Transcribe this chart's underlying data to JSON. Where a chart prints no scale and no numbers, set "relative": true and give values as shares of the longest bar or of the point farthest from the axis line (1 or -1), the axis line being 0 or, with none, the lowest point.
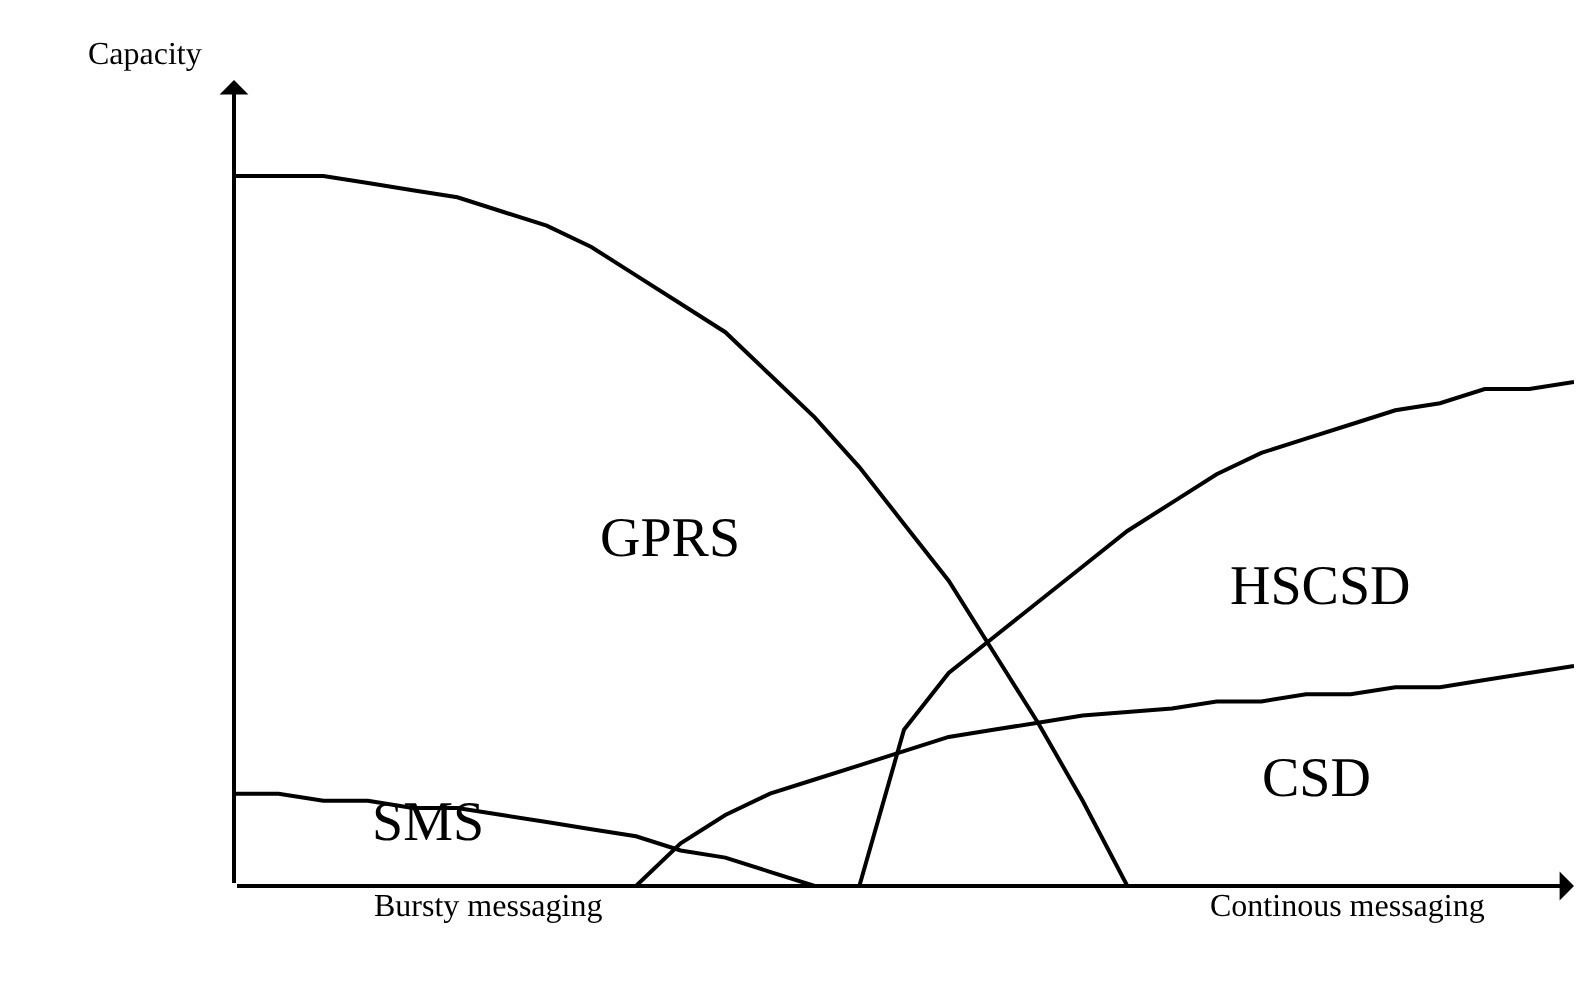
{
  "chart_data": {
    "type": "line",
    "relative": true,
    "ylabel": "Capacity",
    "tick_labels": false,
    "legend": false,
    "marker": "none",
    "line_style": "solid",
    "categories": [
      null,
      null,
      null,
      null,
      null,
      null,
      null,
      null,
      null,
      null,
      null,
      null,
      null,
      null,
      null,
      null,
      null,
      null,
      null,
      null,
      null,
      null,
      null,
      null,
      null,
      null,
      null,
      null,
      null,
      null,
      null
    ],
    "series": [
      {
        "name": "GPRS",
        "color": "#000000",
        "values": [
          1.0,
          1.0,
          1.0,
          0.99,
          0.98,
          0.97,
          0.95,
          0.93,
          0.9,
          0.86,
          0.82,
          0.78,
          0.72,
          0.66,
          0.59,
          0.51,
          0.43,
          0.33,
          0.23,
          0.12,
          0,
          null,
          null,
          null,
          null,
          null,
          null,
          null,
          null,
          null,
          null
        ]
      },
      {
        "name": "SMS",
        "color": "#000000",
        "values": [
          0.13,
          0.13,
          0.12,
          0.12,
          0.11,
          0.11,
          0.1,
          0.09,
          0.08,
          0.07,
          0.05,
          0.04,
          0.02,
          0,
          null,
          null,
          null,
          null,
          null,
          null,
          null,
          null,
          null,
          null,
          null,
          null,
          null,
          null,
          null,
          null,
          null
        ]
      },
      {
        "name": "HSCSD",
        "color": "#000000",
        "values": [
          null,
          null,
          null,
          null,
          null,
          null,
          null,
          null,
          null,
          null,
          null,
          null,
          null,
          null,
          0,
          0.22,
          0.3,
          0.35,
          0.4,
          0.45,
          0.5,
          0.54,
          0.58,
          0.61,
          0.63,
          0.65,
          0.67,
          0.68,
          0.7,
          0.7,
          0.71
        ]
      },
      {
        "name": "CSD",
        "color": "#000000",
        "values": [
          null,
          null,
          null,
          null,
          null,
          null,
          null,
          null,
          null,
          0,
          0.06,
          0.1,
          0.13,
          0.15,
          0.17,
          0.19,
          0.21,
          0.22,
          0.23,
          0.24,
          0.245,
          0.25,
          0.26,
          0.26,
          0.27,
          0.27,
          0.28,
          0.28,
          0.29,
          0.3,
          0.31
        ]
      }
    ],
    "annotations": [
      "Bursty messaging",
      "Continous messaging"
    ]
  }
}
